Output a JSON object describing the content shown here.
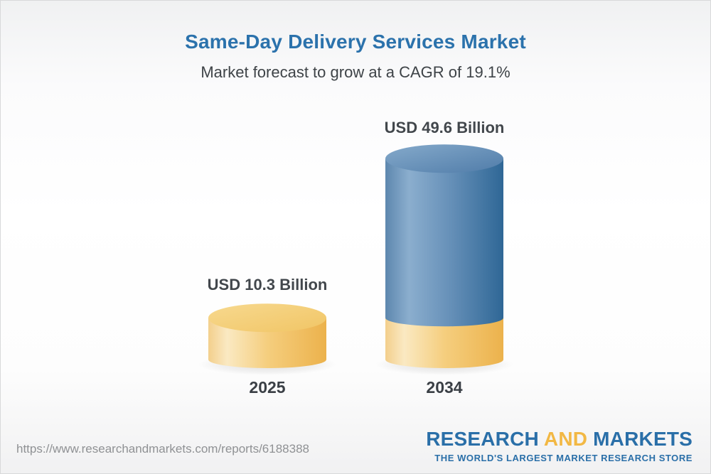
{
  "header": {
    "title": "Same-Day Delivery Services Market",
    "subtitle": "Market forecast to grow at a CAGR of 19.1%"
  },
  "chart_data": {
    "type": "bar",
    "variant": "3d-cylinder",
    "unit": "USD Billion",
    "categories": [
      "2025",
      "2034"
    ],
    "values": [
      10.3,
      49.6
    ],
    "value_labels": [
      "USD 10.3 Billion",
      "USD 49.6 Billion"
    ],
    "cagr": "19.1%",
    "ylim": [
      0,
      50
    ],
    "legend": "none",
    "grid": false,
    "note": "Second cylinder shows the 2025 base value as a yellow band at its bottom; growth portion is blue.",
    "colors": {
      "base_yellow": "#f2c569",
      "growth_blue": "#4e7eac"
    }
  },
  "footer": {
    "url": "https://www.researchandmarkets.com/reports/6188388",
    "logo": {
      "part1": "RESEARCH",
      "part2": "AND",
      "part3": "MARKETS",
      "tagline": "THE WORLD'S LARGEST MARKET RESEARCH STORE",
      "blue": "#2a6fa8",
      "gold": "#f2b844"
    }
  }
}
